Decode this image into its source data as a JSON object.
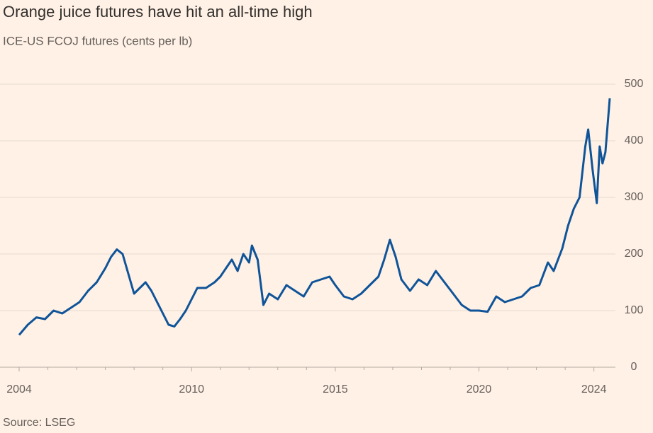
{
  "chart_data": {
    "type": "line",
    "title": "Orange juice futures have hit an all-time high",
    "subtitle": "ICE-US FCOJ futures (cents per lb)",
    "source": "Source: LSEG",
    "x": [
      2004.0,
      2004.3,
      2004.6,
      2004.9,
      2005.2,
      2005.5,
      2005.8,
      2006.1,
      2006.4,
      2006.7,
      2007.0,
      2007.2,
      2007.4,
      2007.6,
      2007.8,
      2008.0,
      2008.2,
      2008.4,
      2008.6,
      2008.8,
      2009.0,
      2009.2,
      2009.4,
      2009.6,
      2009.8,
      2010.0,
      2010.2,
      2010.5,
      2010.8,
      2011.0,
      2011.2,
      2011.4,
      2011.6,
      2011.8,
      2012.0,
      2012.1,
      2012.3,
      2012.5,
      2012.7,
      2013.0,
      2013.3,
      2013.6,
      2013.9,
      2014.2,
      2014.5,
      2014.8,
      2015.0,
      2015.3,
      2015.6,
      2015.9,
      2016.2,
      2016.5,
      2016.7,
      2016.9,
      2017.1,
      2017.3,
      2017.6,
      2017.9,
      2018.2,
      2018.5,
      2018.8,
      2019.1,
      2019.4,
      2019.7,
      2020.0,
      2020.3,
      2020.6,
      2020.9,
      2021.2,
      2021.5,
      2021.8,
      2022.1,
      2022.4,
      2022.6,
      2022.9,
      2023.1,
      2023.3,
      2023.5,
      2023.7,
      2023.8,
      2023.95,
      2024.1,
      2024.2,
      2024.3,
      2024.4,
      2024.55
    ],
    "series": [
      {
        "name": "ICE-US FCOJ futures",
        "color": "#0f5499",
        "values": [
          57,
          75,
          88,
          85,
          100,
          95,
          105,
          115,
          135,
          150,
          175,
          195,
          208,
          200,
          165,
          130,
          140,
          150,
          135,
          115,
          95,
          75,
          72,
          85,
          100,
          120,
          140,
          140,
          150,
          160,
          175,
          190,
          170,
          200,
          185,
          215,
          190,
          110,
          130,
          120,
          145,
          135,
          125,
          150,
          155,
          160,
          145,
          125,
          120,
          130,
          145,
          160,
          190,
          225,
          195,
          155,
          135,
          155,
          145,
          170,
          150,
          130,
          110,
          100,
          100,
          98,
          125,
          115,
          120,
          125,
          140,
          145,
          185,
          170,
          210,
          250,
          280,
          300,
          390,
          420,
          350,
          290,
          390,
          360,
          380,
          475
        ]
      }
    ],
    "xlim": [
      2004,
      2024.6
    ],
    "xticks": [
      2004,
      2010,
      2015,
      2020,
      2024
    ],
    "xminorticks": [
      2005,
      2006,
      2007,
      2008,
      2009,
      2011,
      2012,
      2013,
      2014,
      2016,
      2017,
      2018,
      2019,
      2021,
      2022,
      2023
    ],
    "ylim": [
      0,
      500
    ],
    "yticks": [
      0,
      100,
      200,
      300,
      400,
      500
    ],
    "grid": true
  }
}
